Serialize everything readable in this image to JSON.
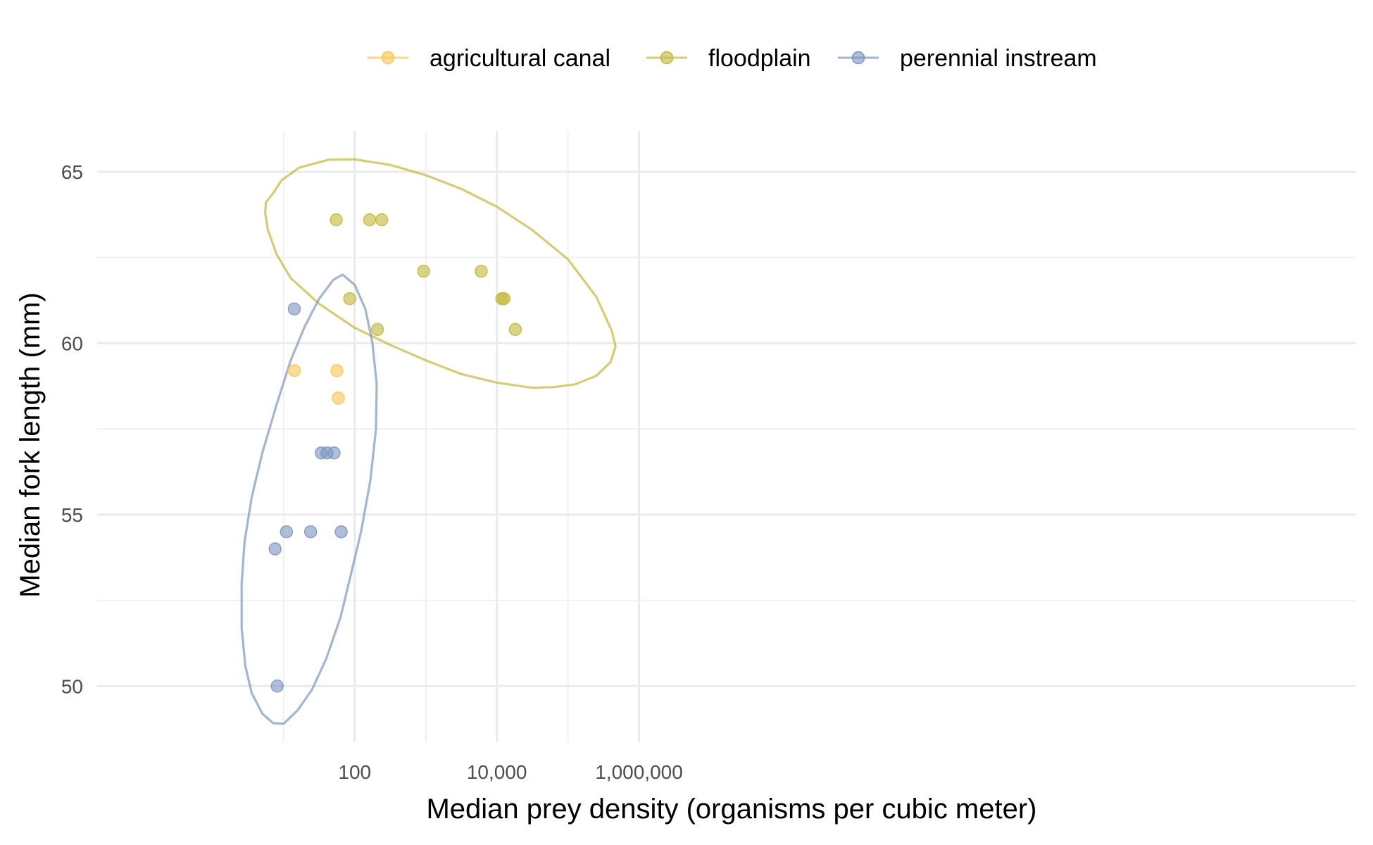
{
  "chart_data": {
    "type": "scatter",
    "title": "",
    "xlabel": "Median prey density (organisms per cubic meter)",
    "ylabel": "Median fork length (mm)",
    "x_scale": "log10",
    "xlim_log10": [
      0.6,
      6.0
    ],
    "ylim": [
      48.5,
      66.3
    ],
    "x_ticks": [
      {
        "log10": 2,
        "label": "100"
      },
      {
        "log10": 4,
        "label": "10,000"
      },
      {
        "log10": 6,
        "label": "1,000,000"
      }
    ],
    "x_minor_log10": [
      1,
      3,
      5
    ],
    "y_ticks": [
      {
        "value": 50,
        "label": "50"
      },
      {
        "value": 55,
        "label": "55"
      },
      {
        "value": 60,
        "label": "60"
      },
      {
        "value": 65,
        "label": "65"
      }
    ],
    "y_minor": [
      52.5,
      57.5,
      62.5
    ],
    "grid": true,
    "legend_position": "top",
    "series": [
      {
        "name": "agricultural canal",
        "color": "#fec44f",
        "points": [
          {
            "x_log10": 1.15,
            "y": 59.2
          },
          {
            "x_log10": 1.75,
            "y": 59.2
          },
          {
            "x_log10": 1.77,
            "y": 58.4
          }
        ]
      },
      {
        "name": "floodplain",
        "color": "#c2b935",
        "points": [
          {
            "x_log10": 1.74,
            "y": 63.6
          },
          {
            "x_log10": 1.93,
            "y": 61.3
          },
          {
            "x_log10": 2.21,
            "y": 63.6
          },
          {
            "x_log10": 2.32,
            "y": 60.4
          },
          {
            "x_log10": 2.38,
            "y": 63.6
          },
          {
            "x_log10": 2.97,
            "y": 62.1
          },
          {
            "x_log10": 3.78,
            "y": 62.1
          },
          {
            "x_log10": 4.07,
            "y": 61.3
          },
          {
            "x_log10": 4.1,
            "y": 61.3
          },
          {
            "x_log10": 4.26,
            "y": 60.4
          }
        ]
      },
      {
        "name": "perennial instream",
        "color": "#7b95bf",
        "points": [
          {
            "x_log10": 1.15,
            "y": 61.0
          },
          {
            "x_log10": 1.53,
            "y": 56.8
          },
          {
            "x_log10": 1.61,
            "y": 56.8
          },
          {
            "x_log10": 1.71,
            "y": 56.8
          },
          {
            "x_log10": 1.04,
            "y": 54.5
          },
          {
            "x_log10": 1.38,
            "y": 54.5
          },
          {
            "x_log10": 1.81,
            "y": 54.5
          },
          {
            "x_log10": 0.88,
            "y": 54.0
          },
          {
            "x_log10": 0.91,
            "y": 50.0
          }
        ]
      }
    ],
    "ellipses": [
      {
        "series": "floodplain",
        "color": "#c2b935",
        "points": [
          [
            0.86,
            64.4
          ],
          [
            0.97,
            64.75
          ],
          [
            1.22,
            65.12
          ],
          [
            1.63,
            65.35
          ],
          [
            2.0,
            65.36
          ],
          [
            2.5,
            65.2
          ],
          [
            3.0,
            64.9
          ],
          [
            3.5,
            64.5
          ],
          [
            4.0,
            63.98
          ],
          [
            4.5,
            63.3
          ],
          [
            5.0,
            62.45
          ],
          [
            5.4,
            61.35
          ],
          [
            5.62,
            60.35
          ],
          [
            5.67,
            59.9
          ],
          [
            5.6,
            59.45
          ],
          [
            5.4,
            59.05
          ],
          [
            5.1,
            58.8
          ],
          [
            4.8,
            58.72
          ],
          [
            4.5,
            58.7
          ],
          [
            4.0,
            58.85
          ],
          [
            3.5,
            59.1
          ],
          [
            3.0,
            59.5
          ],
          [
            2.5,
            59.95
          ],
          [
            2.0,
            60.45
          ],
          [
            1.5,
            61.15
          ],
          [
            1.1,
            61.9
          ],
          [
            0.9,
            62.6
          ],
          [
            0.78,
            63.3
          ],
          [
            0.74,
            63.8
          ],
          [
            0.75,
            64.1
          ],
          [
            0.86,
            64.4
          ]
        ]
      },
      {
        "series": "perennial instream",
        "color": "#7b95bf",
        "points": [
          [
            1.83,
            62.0
          ],
          [
            2.0,
            61.7
          ],
          [
            2.15,
            61.0
          ],
          [
            2.25,
            60.0
          ],
          [
            2.31,
            58.8
          ],
          [
            2.3,
            57.5
          ],
          [
            2.22,
            56.0
          ],
          [
            2.09,
            54.5
          ],
          [
            1.94,
            53.2
          ],
          [
            1.8,
            52.0
          ],
          [
            1.6,
            50.8
          ],
          [
            1.4,
            49.9
          ],
          [
            1.2,
            49.3
          ],
          [
            1.0,
            48.9
          ],
          [
            0.85,
            48.92
          ],
          [
            0.7,
            49.2
          ],
          [
            0.55,
            49.8
          ],
          [
            0.46,
            50.6
          ],
          [
            0.41,
            51.7
          ],
          [
            0.41,
            53.0
          ],
          [
            0.45,
            54.2
          ],
          [
            0.55,
            55.5
          ],
          [
            0.7,
            56.8
          ],
          [
            0.9,
            58.2
          ],
          [
            1.1,
            59.5
          ],
          [
            1.3,
            60.5
          ],
          [
            1.5,
            61.3
          ],
          [
            1.7,
            61.85
          ],
          [
            1.83,
            62.0
          ]
        ]
      }
    ]
  }
}
